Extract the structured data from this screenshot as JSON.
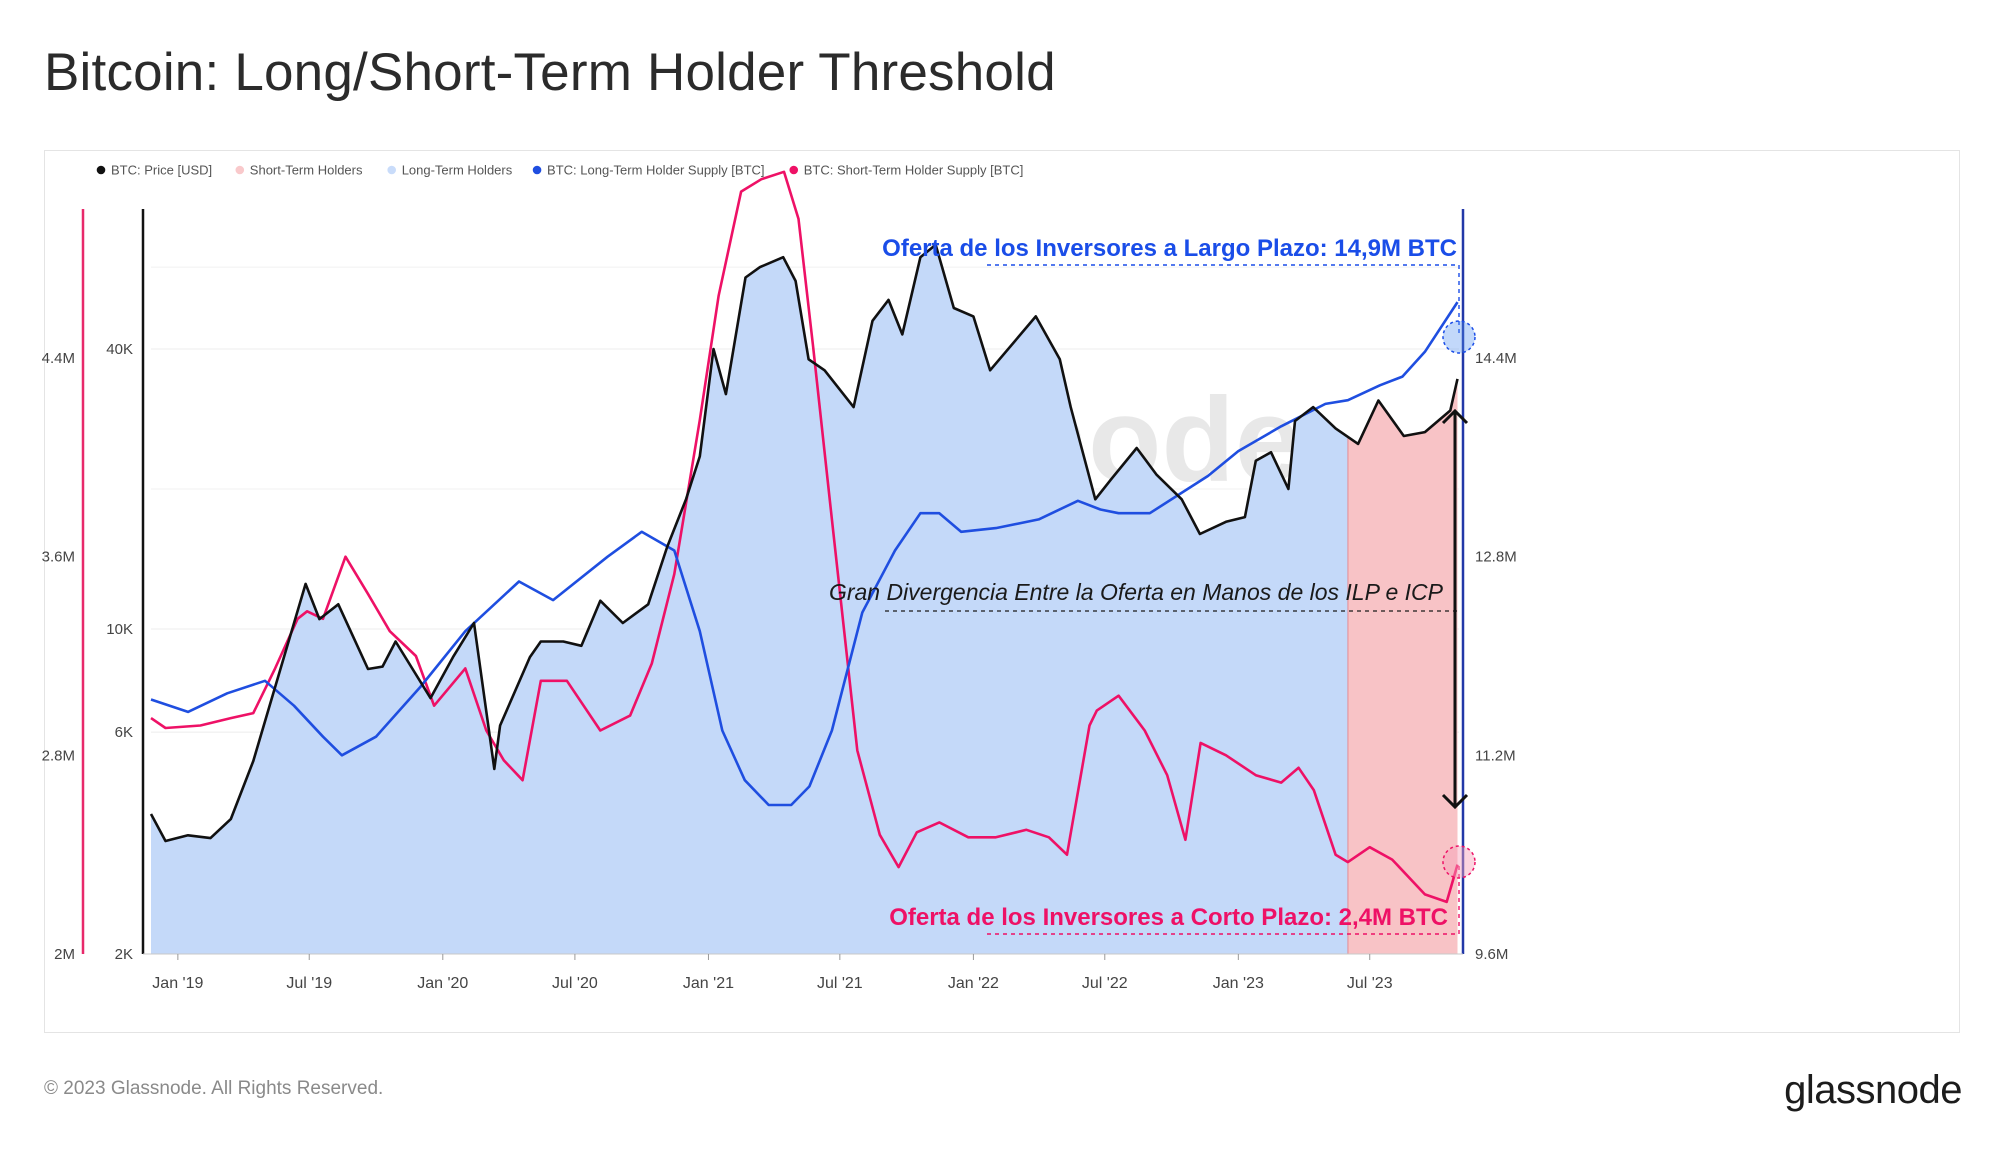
{
  "title": "Bitcoin: Long/Short-Term Holder Threshold",
  "footer": {
    "copyright": "© 2023 Glassnode. All Rights Reserved.",
    "brand": "glassnode"
  },
  "watermark": "glassnode",
  "colors": {
    "price": "#111111",
    "lth_supply": "#1f4ee0",
    "sth_supply": "#ee1166",
    "lth_fill": "#c4d9f9",
    "sth_fill": "#f8c3c6",
    "left_axis": "#e8296a",
    "right_axis": "#2238a8"
  },
  "chart_data": {
    "type": "line",
    "legend": [
      {
        "label": "BTC: Price [USD]",
        "color": "#111111"
      },
      {
        "label": "Short-Term Holders",
        "color": "#f9c9cb"
      },
      {
        "label": "Long-Term Holders",
        "color": "#c9dcfa"
      },
      {
        "label": "BTC: Long-Term Holder Supply [BTC]",
        "color": "#1f4ee0"
      },
      {
        "label": "BTC: Short-Term Holder Supply [BTC]",
        "color": "#ee1166"
      }
    ],
    "x_ticks": [
      "Jan '19",
      "Jul '19",
      "Jan '20",
      "Jul '20",
      "Jan '21",
      "Jul '21",
      "Jan '22",
      "Jul '22",
      "Jan '23",
      "Jul '23"
    ],
    "x_range": [
      "2018-11-25",
      "2023-11-01"
    ],
    "axes": {
      "left_sth_supply": {
        "ticks": [
          "4.4M",
          "3.6M",
          "2.8M",
          "2M"
        ],
        "range": [
          2000000,
          5000000
        ]
      },
      "price_log": {
        "ticks": [
          "40K",
          "10K",
          "6K",
          "2K"
        ],
        "range": [
          2000,
          80000
        ],
        "scale": "log"
      },
      "right_lth_supply": {
        "ticks": [
          "14.4M",
          "12.8M",
          "11.2M",
          "9.6M"
        ],
        "range": [
          9600000,
          15600000
        ]
      }
    },
    "regime_split": "2023-06-01",
    "series": [
      {
        "name": "BTC: Price [USD]",
        "unit": "USD",
        "x": [
          "2018-11-25",
          "2018-12-15",
          "2019-01-15",
          "2019-02-15",
          "2019-03-15",
          "2019-04-15",
          "2019-05-15",
          "2019-06-26",
          "2019-07-15",
          "2019-08-10",
          "2019-09-20",
          "2019-10-10",
          "2019-10-28",
          "2019-12-15",
          "2020-01-15",
          "2020-02-13",
          "2020-03-12",
          "2020-03-20",
          "2020-04-30",
          "2020-05-15",
          "2020-06-15",
          "2020-07-10",
          "2020-08-05",
          "2020-09-05",
          "2020-10-10",
          "2020-11-05",
          "2020-12-01",
          "2020-12-20",
          "2021-01-08",
          "2021-01-25",
          "2021-02-21",
          "2021-03-13",
          "2021-04-14",
          "2021-05-01",
          "2021-05-19",
          "2021-06-10",
          "2021-07-20",
          "2021-08-15",
          "2021-09-06",
          "2021-09-25",
          "2021-10-20",
          "2021-11-10",
          "2021-12-05",
          "2022-01-01",
          "2022-01-24",
          "2022-03-28",
          "2022-04-30",
          "2022-05-15",
          "2022-06-18",
          "2022-07-10",
          "2022-08-14",
          "2022-09-10",
          "2022-10-15",
          "2022-11-09",
          "2022-12-15",
          "2023-01-10",
          "2023-01-25",
          "2023-02-15",
          "2023-03-11",
          "2023-03-20",
          "2023-04-14",
          "2023-05-15",
          "2023-06-15",
          "2023-07-13",
          "2023-08-17",
          "2023-09-15",
          "2023-10-20",
          "2023-10-30"
        ],
        "values": [
          4000,
          3500,
          3600,
          3550,
          3900,
          5200,
          7500,
          12500,
          10500,
          11300,
          8200,
          8300,
          9400,
          7100,
          8700,
          10300,
          5000,
          6200,
          8700,
          9400,
          9400,
          9200,
          11500,
          10300,
          11300,
          15000,
          19000,
          23500,
          40000,
          32000,
          57000,
          60000,
          63000,
          56000,
          38000,
          36000,
          30000,
          46000,
          51000,
          43000,
          63000,
          67000,
          49000,
          47000,
          36000,
          47000,
          38000,
          30000,
          19000,
          21000,
          24500,
          21500,
          19000,
          16000,
          17000,
          17400,
          23000,
          24000,
          20000,
          28000,
          30000,
          27000,
          25000,
          31000,
          26000,
          26500,
          29500,
          34500
        ]
      },
      {
        "name": "BTC: Long-Term Holder Supply [BTC]",
        "unit": "BTC",
        "x": [
          "2018-11-25",
          "2019-01-15",
          "2019-03-10",
          "2019-05-01",
          "2019-06-10",
          "2019-07-20",
          "2019-08-15",
          "2019-10-01",
          "2019-12-01",
          "2020-02-01",
          "2020-04-15",
          "2020-06-01",
          "2020-08-15",
          "2020-10-01",
          "2020-11-15",
          "2020-12-20",
          "2021-01-20",
          "2021-02-20",
          "2021-03-25",
          "2021-04-25",
          "2021-05-20",
          "2021-06-20",
          "2021-08-01",
          "2021-09-15",
          "2021-10-20",
          "2021-11-15",
          "2021-12-15",
          "2022-02-01",
          "2022-04-01",
          "2022-05-25",
          "2022-06-25",
          "2022-07-20",
          "2022-09-01",
          "2022-11-20",
          "2023-01-01",
          "2023-03-01",
          "2023-05-01",
          "2023-06-01",
          "2023-07-15",
          "2023-08-15",
          "2023-09-15",
          "2023-10-30"
        ],
        "values": [
          11650000,
          11550000,
          11700000,
          11800000,
          11600000,
          11350000,
          11200000,
          11350000,
          11750000,
          12200000,
          12600000,
          12450000,
          12800000,
          13000000,
          12850000,
          12200000,
          11400000,
          11000000,
          10800000,
          10800000,
          10950000,
          11400000,
          12350000,
          12850000,
          13150000,
          13150000,
          13000000,
          13030000,
          13100000,
          13250000,
          13180000,
          13150000,
          13150000,
          13450000,
          13650000,
          13850000,
          14030000,
          14060000,
          14180000,
          14250000,
          14450000,
          14850000
        ]
      },
      {
        "name": "BTC: Short-Term Holder Supply [BTC]",
        "unit": "BTC",
        "x": [
          "2018-11-25",
          "2018-12-15",
          "2019-02-01",
          "2019-03-15",
          "2019-04-15",
          "2019-05-15",
          "2019-06-15",
          "2019-06-28",
          "2019-07-20",
          "2019-08-20",
          "2019-09-20",
          "2019-10-20",
          "2019-11-25",
          "2019-12-20",
          "2020-02-01",
          "2020-03-01",
          "2020-03-25",
          "2020-04-20",
          "2020-05-15",
          "2020-06-20",
          "2020-08-05",
          "2020-09-15",
          "2020-10-15",
          "2020-11-15",
          "2020-12-20",
          "2021-01-15",
          "2021-02-15",
          "2021-03-15",
          "2021-04-15",
          "2021-05-05",
          "2021-05-25",
          "2021-06-20",
          "2021-07-25",
          "2021-08-25",
          "2021-09-20",
          "2021-10-15",
          "2021-11-15",
          "2021-12-25",
          "2022-02-01",
          "2022-03-15",
          "2022-04-15",
          "2022-05-10",
          "2022-06-10",
          "2022-06-20",
          "2022-07-20",
          "2022-08-25",
          "2022-09-25",
          "2022-10-20",
          "2022-11-10",
          "2022-12-15",
          "2023-01-25",
          "2023-03-01",
          "2023-03-25",
          "2023-04-15",
          "2023-05-15",
          "2023-06-01",
          "2023-07-01",
          "2023-08-01",
          "2023-09-15",
          "2023-10-15",
          "2023-10-30"
        ],
        "values": [
          2950000,
          2910000,
          2920000,
          2950000,
          2970000,
          3150000,
          3350000,
          3380000,
          3350000,
          3600000,
          3450000,
          3300000,
          3200000,
          3000000,
          3150000,
          2900000,
          2780000,
          2700000,
          3100000,
          3100000,
          2900000,
          2960000,
          3170000,
          3530000,
          4150000,
          4650000,
          5070000,
          5120000,
          5150000,
          4960000,
          4450000,
          3750000,
          2820000,
          2480000,
          2350000,
          2490000,
          2530000,
          2470000,
          2470000,
          2500000,
          2470000,
          2400000,
          2920000,
          2980000,
          3040000,
          2900000,
          2720000,
          2460000,
          2850000,
          2800000,
          2720000,
          2690000,
          2750000,
          2660000,
          2400000,
          2370000,
          2430000,
          2380000,
          2240000,
          2210000,
          2360000
        ]
      }
    ]
  },
  "annotations": {
    "lth": "Oferta de los Inversores a Largo Plazo: 14,9M BTC",
    "sth": "Oferta de los Inversores a Corto Plazo: 2,4M BTC",
    "divergence": "Gran Divergencia Entre la Oferta en Manos de los ILP e ICP"
  }
}
